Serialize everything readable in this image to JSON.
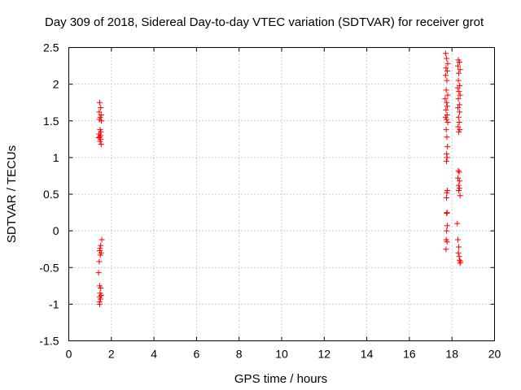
{
  "chart_data": {
    "type": "scatter",
    "title": "Day 309 of 2018, Sidereal Day-to-day VTEC variation (SDTVAR) for receiver grot",
    "xlabel": "GPS time / hours",
    "ylabel": "SDTVAR / TECUs",
    "xlim": [
      0,
      20
    ],
    "ylim": [
      -1.5,
      2.5
    ],
    "xticks": [
      0,
      2,
      4,
      6,
      8,
      10,
      12,
      14,
      16,
      18,
      20
    ],
    "xtick_labels": [
      "0",
      "2",
      "4",
      "6",
      "8",
      "10",
      "12",
      "14",
      "16",
      "18",
      "20"
    ],
    "yticks": [
      -1.5,
      -1,
      -0.5,
      0,
      0.5,
      1,
      1.5,
      2,
      2.5
    ],
    "ytick_labels": [
      "-1.5",
      "-1",
      "-0.5",
      "0",
      "0.5",
      "1",
      "1.5",
      "2",
      "2.5"
    ],
    "grid": true,
    "marker": "plus",
    "color": "#ff0000",
    "series": [
      {
        "name": "SDTVAR",
        "points": [
          [
            1.45,
            1.75
          ],
          [
            1.5,
            1.68
          ],
          [
            1.43,
            1.62
          ],
          [
            1.52,
            1.58
          ],
          [
            1.48,
            1.55
          ],
          [
            1.44,
            1.52
          ],
          [
            1.53,
            1.5
          ],
          [
            1.47,
            1.38
          ],
          [
            1.51,
            1.35
          ],
          [
            1.42,
            1.32
          ],
          [
            1.49,
            1.3
          ],
          [
            1.46,
            1.28
          ],
          [
            1.4,
            1.27
          ],
          [
            1.5,
            1.25
          ],
          [
            1.47,
            1.22
          ],
          [
            1.52,
            1.18
          ],
          [
            1.55,
            -0.12
          ],
          [
            1.5,
            -0.2
          ],
          [
            1.47,
            -0.24
          ],
          [
            1.45,
            -0.27
          ],
          [
            1.52,
            -0.3
          ],
          [
            1.48,
            -0.33
          ],
          [
            1.43,
            -0.42
          ],
          [
            1.4,
            -0.57
          ],
          [
            1.45,
            -0.75
          ],
          [
            1.5,
            -0.78
          ],
          [
            1.47,
            -0.85
          ],
          [
            1.52,
            -0.88
          ],
          [
            1.46,
            -0.9
          ],
          [
            1.49,
            -0.93
          ],
          [
            1.44,
            -0.97
          ],
          [
            1.45,
            -1.0
          ],
          [
            17.7,
            2.42
          ],
          [
            17.75,
            2.35
          ],
          [
            17.8,
            2.28
          ],
          [
            17.72,
            2.22
          ],
          [
            17.78,
            2.18
          ],
          [
            17.7,
            2.12
          ],
          [
            17.76,
            2.05
          ],
          [
            17.73,
            1.92
          ],
          [
            17.8,
            1.85
          ],
          [
            17.68,
            1.8
          ],
          [
            17.75,
            1.75
          ],
          [
            17.78,
            1.7
          ],
          [
            17.72,
            1.65
          ],
          [
            17.77,
            1.58
          ],
          [
            17.7,
            1.55
          ],
          [
            17.74,
            1.52
          ],
          [
            17.8,
            1.48
          ],
          [
            17.73,
            1.38
          ],
          [
            17.76,
            1.28
          ],
          [
            17.79,
            1.15
          ],
          [
            17.75,
            1.05
          ],
          [
            17.77,
            1.0
          ],
          [
            17.74,
            0.95
          ],
          [
            17.78,
            0.55
          ],
          [
            17.76,
            0.52
          ],
          [
            17.74,
            0.45
          ],
          [
            17.77,
            0.25
          ],
          [
            17.75,
            0.24
          ],
          [
            17.78,
            0.07
          ],
          [
            17.75,
            0.0
          ],
          [
            17.73,
            -0.12
          ],
          [
            17.77,
            -0.15
          ],
          [
            17.72,
            -0.25
          ],
          [
            18.3,
            2.33
          ],
          [
            18.35,
            2.3
          ],
          [
            18.28,
            2.25
          ],
          [
            18.38,
            2.2
          ],
          [
            18.32,
            2.15
          ],
          [
            18.3,
            2.05
          ],
          [
            18.36,
            1.98
          ],
          [
            18.27,
            1.95
          ],
          [
            18.33,
            1.9
          ],
          [
            18.38,
            1.85
          ],
          [
            18.3,
            1.8
          ],
          [
            18.35,
            1.72
          ],
          [
            18.28,
            1.68
          ],
          [
            18.36,
            1.62
          ],
          [
            18.31,
            1.55
          ],
          [
            18.34,
            1.48
          ],
          [
            18.29,
            1.42
          ],
          [
            18.37,
            1.38
          ],
          [
            18.32,
            1.35
          ],
          [
            18.3,
            0.82
          ],
          [
            18.34,
            0.8
          ],
          [
            18.28,
            0.72
          ],
          [
            18.36,
            0.68
          ],
          [
            18.31,
            0.62
          ],
          [
            18.35,
            0.58
          ],
          [
            18.32,
            0.55
          ],
          [
            18.38,
            0.48
          ],
          [
            18.25,
            0.1
          ],
          [
            18.28,
            -0.12
          ],
          [
            18.32,
            -0.22
          ],
          [
            18.3,
            -0.3
          ],
          [
            18.34,
            -0.35
          ],
          [
            18.36,
            -0.4
          ],
          [
            18.4,
            -0.42
          ],
          [
            18.38,
            -0.44
          ]
        ]
      }
    ]
  }
}
